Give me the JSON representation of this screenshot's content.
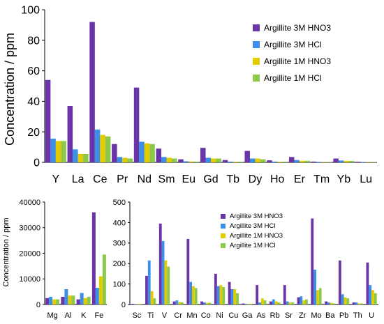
{
  "colors": {
    "Argillite 3M HNO3": "#6A35A8",
    "Argillite 3M HCl": "#3C8FE8",
    "Argillite 1M HNO3": "#E2CC00",
    "Argillite 1M HCl": "#8CC84A"
  },
  "shared_ylabel": "Concentration / ppm",
  "chart_data": [
    {
      "id": "ree",
      "type": "bar",
      "title": "",
      "xlabel": "",
      "ylabel": "Concentration / ppm",
      "ylim": [
        0,
        100
      ],
      "yticks": [
        0,
        20,
        40,
        60,
        80,
        100
      ],
      "grid": false,
      "legend": "top-right",
      "categories": [
        "Y",
        "La",
        "Ce",
        "Pr",
        "Nd",
        "Sm",
        "Eu",
        "Gd",
        "Tb",
        "Dy",
        "Ho",
        "Er",
        "Tm",
        "Yb",
        "Lu"
      ],
      "series": [
        {
          "name": "Argillite 3M HNO3",
          "values": [
            54,
            37,
            92,
            12,
            49,
            9,
            2,
            9.5,
            1.5,
            7.5,
            1.3,
            3.5,
            0.5,
            2.5,
            0.4
          ]
        },
        {
          "name": "Argillite 3M HCl",
          "values": [
            15.5,
            8.5,
            21.5,
            3.5,
            13.5,
            3.5,
            0.7,
            3,
            0.5,
            2.5,
            0.5,
            1.5,
            0.3,
            1.2,
            0.2
          ]
        },
        {
          "name": "Argillite 1M HNO3",
          "values": [
            14,
            5.5,
            18,
            3,
            12.5,
            3,
            0.6,
            2.5,
            0.4,
            2.5,
            0.4,
            1,
            0.2,
            1,
            0.2
          ]
        },
        {
          "name": "Argillite 1M HCl",
          "values": [
            14,
            5.5,
            17,
            2.5,
            12,
            2.5,
            0.5,
            2.5,
            0.4,
            2,
            0.4,
            1,
            0.2,
            0.9,
            0.2
          ]
        }
      ]
    },
    {
      "id": "major",
      "type": "bar",
      "title": "",
      "xlabel": "",
      "ylabel": "Concentration / ppm",
      "ylim": [
        0,
        40000
      ],
      "yticks": [
        0,
        10000,
        20000,
        30000,
        40000
      ],
      "grid": false,
      "categories": [
        "Mg",
        "Al",
        "K",
        "Fe"
      ],
      "series": [
        {
          "name": "Argillite 3M HNO3",
          "values": [
            2500,
            3000,
            2000,
            36000
          ]
        },
        {
          "name": "Argillite 3M HCl",
          "values": [
            3000,
            6000,
            4500,
            6500
          ]
        },
        {
          "name": "Argillite 1M HNO3",
          "values": [
            2000,
            3500,
            2500,
            11000
          ]
        },
        {
          "name": "Argillite 1M HCl",
          "values": [
            2000,
            3500,
            3000,
            19500
          ]
        }
      ]
    },
    {
      "id": "trace",
      "type": "bar",
      "title": "",
      "xlabel": "",
      "ylabel": "",
      "ylim": [
        0,
        500
      ],
      "yticks": [
        0,
        100,
        200,
        300,
        400,
        500
      ],
      "grid": false,
      "legend": "top-right",
      "categories": [
        "Sc",
        "Ti",
        "V",
        "Cr",
        "Mn",
        "Co",
        "Ni",
        "Cu",
        "Ga",
        "As",
        "Rb",
        "Sr",
        "Zr",
        "Mo",
        "Ba",
        "Pb",
        "Th",
        "U"
      ],
      "series": [
        {
          "name": "Argillite 3M HNO3",
          "values": [
            3,
            140,
            395,
            15,
            320,
            15,
            150,
            110,
            5,
            95,
            15,
            95,
            35,
            420,
            15,
            215,
            10,
            205
          ]
        },
        {
          "name": "Argillite 3M HCl",
          "values": [
            2,
            215,
            310,
            20,
            110,
            10,
            90,
            75,
            3,
            10,
            25,
            15,
            40,
            170,
            10,
            50,
            10,
            95
          ]
        },
        {
          "name": "Argillite 1M HNO3",
          "values": [
            2,
            65,
            215,
            12,
            90,
            8,
            95,
            75,
            3,
            30,
            15,
            10,
            20,
            70,
            8,
            35,
            5,
            70
          ]
        },
        {
          "name": "Argillite 1M HCl",
          "values": [
            2,
            30,
            185,
            10,
            80,
            8,
            85,
            55,
            3,
            20,
            10,
            10,
            25,
            80,
            5,
            30,
            5,
            55
          ]
        }
      ]
    }
  ]
}
